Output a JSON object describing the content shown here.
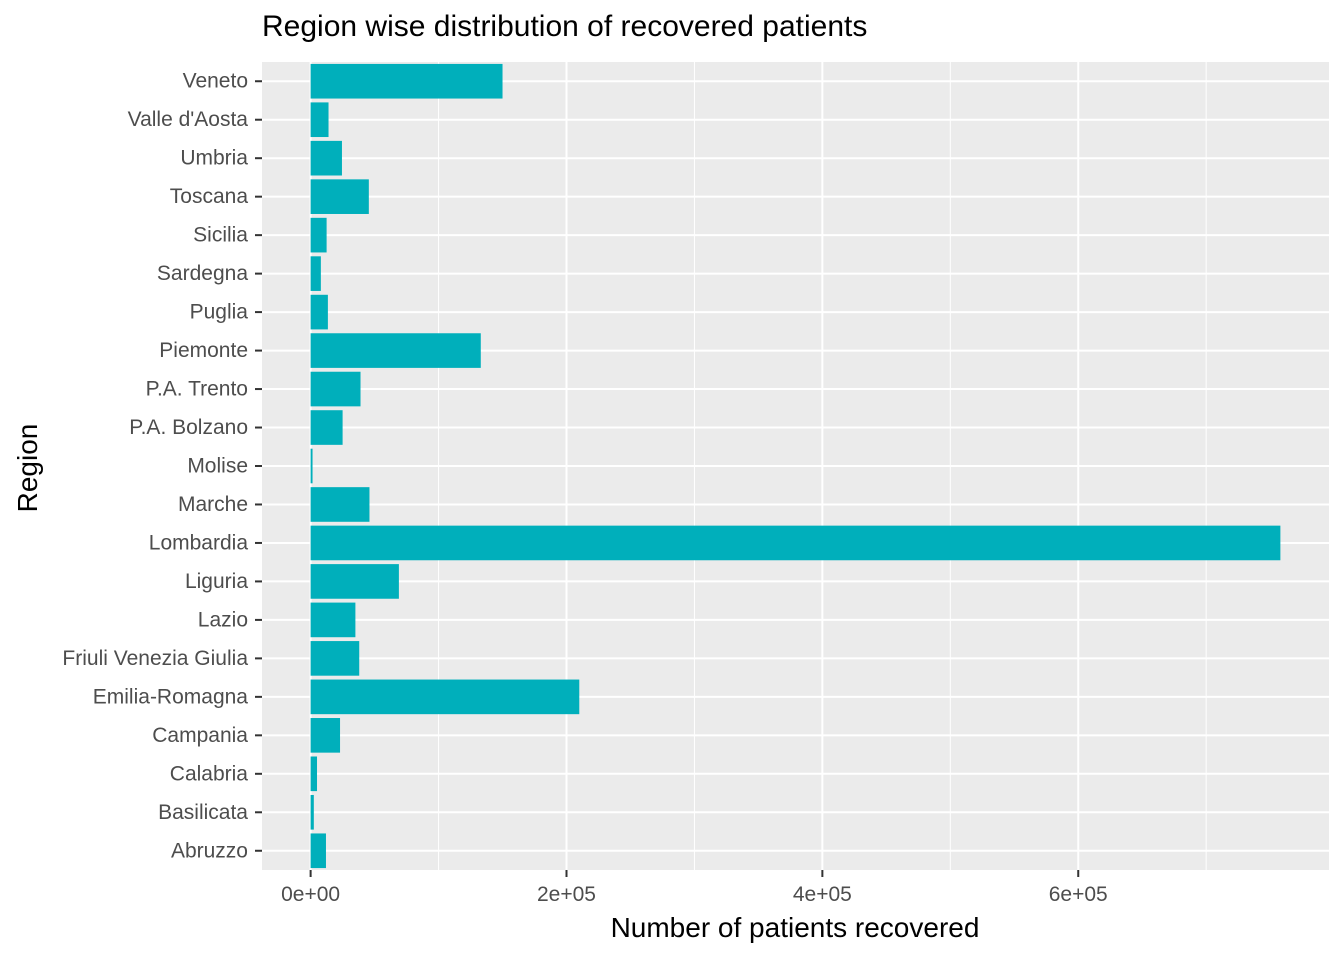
{
  "chart_data": {
    "type": "bar",
    "orientation": "horizontal",
    "title": "Region wise distribution of recovered patients",
    "xlabel": "Number of patients recovered",
    "ylabel": "Region",
    "categories": [
      "Abruzzo",
      "Basilicata",
      "Calabria",
      "Campania",
      "Emilia-Romagna",
      "Friuli Venezia Giulia",
      "Lazio",
      "Liguria",
      "Lombardia",
      "Marche",
      "Molise",
      "P.A. Bolzano",
      "P.A. Trento",
      "Piemonte",
      "Puglia",
      "Sardegna",
      "Sicilia",
      "Toscana",
      "Umbria",
      "Valle d'Aosta",
      "Veneto"
    ],
    "values": [
      12000,
      2500,
      5000,
      23000,
      210000,
      38000,
      35000,
      69000,
      758000,
      46000,
      1500,
      25000,
      39000,
      133000,
      13500,
      8000,
      12500,
      45500,
      24500,
      14000,
      150000
    ],
    "xlim": [
      -38000,
      796000
    ],
    "xticks": [
      0,
      200000,
      400000,
      600000
    ],
    "xtick_labels": [
      "0e+00",
      "2e+05",
      "4e+05",
      "6e+05"
    ],
    "bar_color": "#00AFBB",
    "panel_background": "#EBEBEB",
    "grid": true,
    "legend": "none"
  }
}
